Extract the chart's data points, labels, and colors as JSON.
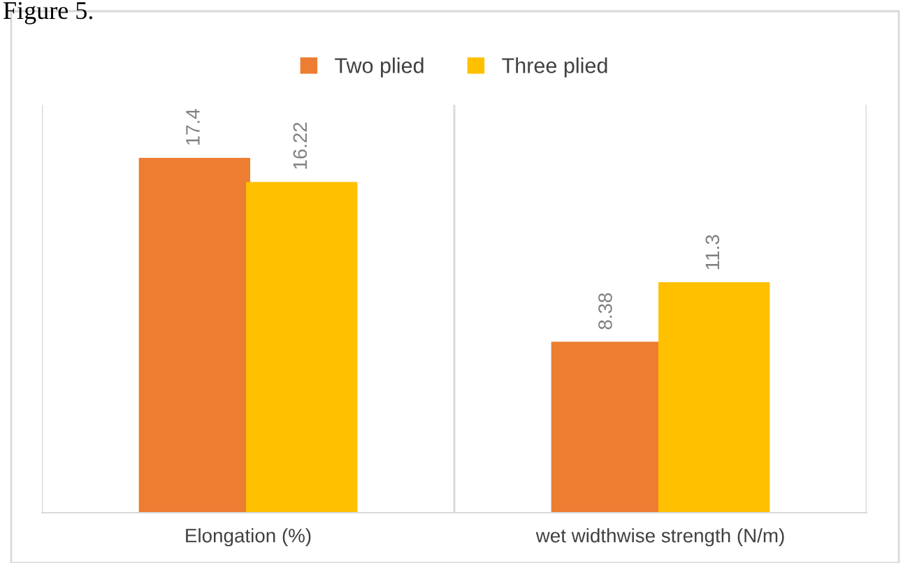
{
  "chart_data": {
    "type": "bar",
    "categories": [
      "Elongation (%)",
      "wet widthwise strength (N/m)"
    ],
    "series": [
      {
        "name": "Two plied",
        "color": "#ed7d31",
        "values": [
          17.4,
          8.38
        ]
      },
      {
        "name": "Three plied",
        "color": "#ffc000",
        "values": [
          16.22,
          11.3
        ]
      }
    ],
    "ylim": [
      0,
      20
    ],
    "tick_labels": "x",
    "data_labels": true,
    "legend": "top",
    "grid": false,
    "annotations": [
      "Figure 5."
    ]
  }
}
